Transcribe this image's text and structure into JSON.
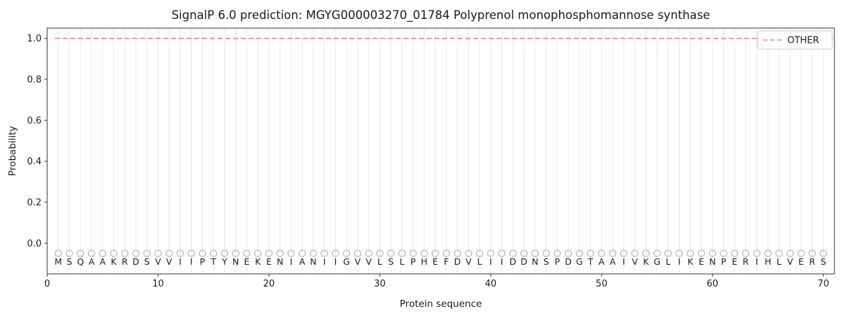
{
  "chart_data": {
    "type": "line",
    "title": "SignalP 6.0 prediction: MGYG000003270_01784 Polyprenol monophosphomannose synthase",
    "xlabel": "Protein sequence",
    "ylabel": "Probability",
    "xlim": [
      0,
      71
    ],
    "ylim": [
      -0.15,
      1.05
    ],
    "xticks": [
      0,
      10,
      20,
      30,
      40,
      50,
      60,
      70
    ],
    "yticks": [
      0.0,
      0.2,
      0.4,
      0.6,
      0.8,
      1.0
    ],
    "grid": {
      "vertical_per_residue": true,
      "color": "#e8e8e8"
    },
    "sequence": "MSQAAKRDSVVIIPTYNEKENIANIIGVVLSLPHEFDVLIIDDNSPDGTAAIVKGLIKENPERIHLVERS",
    "sequence_positions": {
      "start": 1,
      "end": 70
    },
    "series": [
      {
        "name": "OTHER",
        "type": "hline",
        "y": 1.0,
        "x_start": 0.7,
        "x_end": 70.9,
        "color": "#f08080",
        "dash": "7 4",
        "width": 1.6
      }
    ],
    "residue_markers": {
      "symbol": "open-circle",
      "y": -0.05,
      "radius": 4.6,
      "color": "#b5b5b5"
    },
    "legend": {
      "position": "upper-right",
      "entries": [
        {
          "label": "OTHER",
          "color": "#f08080",
          "style": "dashed"
        }
      ]
    }
  },
  "style": {
    "background": "#ffffff",
    "spine_color": "#333333",
    "text_color": "#1a1a1a",
    "grid_color": "#e8e8e8",
    "legend_border": "#cccccc"
  }
}
